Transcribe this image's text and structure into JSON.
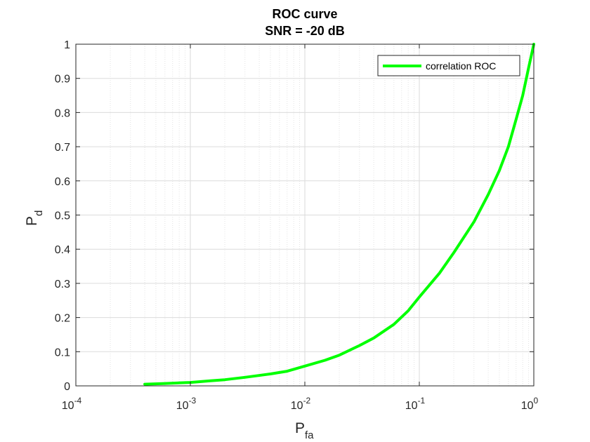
{
  "chart_data": {
    "type": "line",
    "title": "ROC curve",
    "subtitle": "SNR = -20 dB",
    "xlabel": {
      "main": "P",
      "sub": "fa"
    },
    "ylabel": {
      "main": "P",
      "sub": "d"
    },
    "xscale": "log",
    "xlim": [
      0.0001,
      1
    ],
    "ylim": [
      0,
      1
    ],
    "x_ticks": [
      {
        "base": "10",
        "exp": "-4",
        "value": 0.0001
      },
      {
        "base": "10",
        "exp": "-3",
        "value": 0.001
      },
      {
        "base": "10",
        "exp": "-2",
        "value": 0.01
      },
      {
        "base": "10",
        "exp": "-1",
        "value": 0.1
      },
      {
        "base": "10",
        "exp": "0",
        "value": 1
      }
    ],
    "y_ticks": [
      "0",
      "0.1",
      "0.2",
      "0.3",
      "0.4",
      "0.5",
      "0.6",
      "0.7",
      "0.8",
      "0.9",
      "1"
    ],
    "grid": "on, with minor log gridlines (dotted)",
    "legend_position": "top-right",
    "series": [
      {
        "name": "correlation ROC",
        "color": "#00ff00",
        "x": [
          0.0004,
          0.0006,
          0.001,
          0.0015,
          0.002,
          0.003,
          0.005,
          0.007,
          0.01,
          0.015,
          0.02,
          0.03,
          0.04,
          0.06,
          0.08,
          0.1,
          0.15,
          0.2,
          0.3,
          0.4,
          0.5,
          0.6,
          0.7,
          0.8,
          0.9,
          1.0
        ],
        "y": [
          0.005,
          0.007,
          0.01,
          0.015,
          0.018,
          0.025,
          0.035,
          0.043,
          0.058,
          0.075,
          0.09,
          0.118,
          0.14,
          0.18,
          0.22,
          0.26,
          0.33,
          0.39,
          0.48,
          0.56,
          0.63,
          0.7,
          0.78,
          0.85,
          0.93,
          1.0
        ]
      }
    ]
  }
}
